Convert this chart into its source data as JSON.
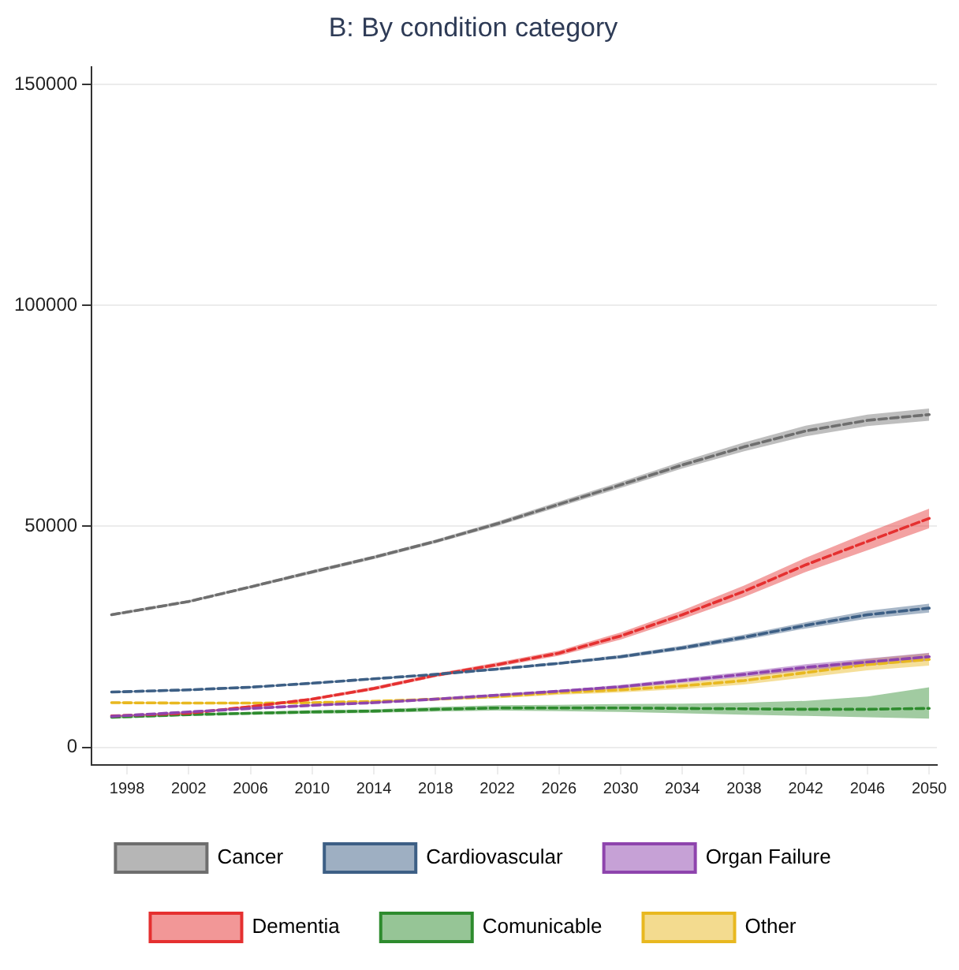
{
  "chart_data": {
    "type": "line",
    "title": "B: By condition category",
    "x": [
      1997,
      2002,
      2006,
      2010,
      2014,
      2018,
      2022,
      2026,
      2030,
      2034,
      2038,
      2042,
      2046,
      2050
    ],
    "series": [
      {
        "name": "Cancer",
        "color": "#6e6e6e",
        "values": [
          30000,
          33000,
          36300,
          39700,
          43000,
          46600,
          50600,
          55000,
          59400,
          63900,
          68000,
          71600,
          74000,
          75300
        ],
        "lower": [
          29700,
          32700,
          36000,
          39300,
          42600,
          46200,
          50100,
          54400,
          58700,
          63100,
          67000,
          70400,
          72700,
          73900
        ],
        "upper": [
          30300,
          33300,
          36600,
          40100,
          43400,
          47000,
          51100,
          55600,
          60100,
          64700,
          69000,
          72800,
          75300,
          76700
        ]
      },
      {
        "name": "Cardiovascular",
        "color": "#3d5f85",
        "values": [
          12500,
          13000,
          13600,
          14500,
          15500,
          16500,
          17700,
          19000,
          20500,
          22500,
          24900,
          27600,
          30000,
          31500
        ],
        "lower": [
          12300,
          12800,
          13400,
          14300,
          15300,
          16300,
          17400,
          18700,
          20100,
          22000,
          24300,
          26900,
          29100,
          30500
        ],
        "upper": [
          12700,
          13200,
          13800,
          14700,
          15700,
          16700,
          18000,
          19300,
          20900,
          23000,
          25500,
          28300,
          30900,
          32500
        ]
      },
      {
        "name": "Organ Failure",
        "color": "#8e44ad",
        "values": [
          7000,
          8000,
          8800,
          9500,
          10100,
          10900,
          11800,
          12700,
          13700,
          15100,
          16500,
          18100,
          19300,
          20500
        ],
        "lower": [
          6800,
          7800,
          8600,
          9300,
          9900,
          10600,
          11500,
          12400,
          13300,
          14600,
          15900,
          17400,
          18500,
          19600
        ],
        "upper": [
          7200,
          8200,
          9000,
          9700,
          10300,
          11200,
          12100,
          13000,
          14100,
          15600,
          17100,
          18800,
          20100,
          21400
        ]
      },
      {
        "name": "Dementia",
        "color": "#e53030",
        "values": [
          7100,
          7700,
          9200,
          10900,
          13300,
          16300,
          18700,
          21300,
          25200,
          30000,
          35300,
          41300,
          46600,
          51800
        ],
        "lower": [
          6900,
          7500,
          8900,
          10600,
          12900,
          15900,
          18200,
          20700,
          24400,
          29000,
          34000,
          39700,
          44600,
          49600
        ],
        "upper": [
          7300,
          7900,
          9500,
          11200,
          13700,
          16700,
          19200,
          21900,
          26000,
          31000,
          36600,
          42900,
          48600,
          54000
        ]
      },
      {
        "name": "Comunicable",
        "color": "#2e8b2e",
        "values": [
          6800,
          7400,
          7700,
          8000,
          8200,
          8600,
          8900,
          8900,
          8900,
          8800,
          8700,
          8600,
          8600,
          8800
        ],
        "lower": [
          6500,
          7100,
          7400,
          7600,
          7800,
          8100,
          8300,
          8200,
          8000,
          7700,
          7400,
          7100,
          6800,
          6500
        ],
        "upper": [
          7100,
          7700,
          8000,
          8400,
          8600,
          9100,
          9500,
          9600,
          9800,
          9900,
          10100,
          10500,
          11500,
          13600
        ]
      },
      {
        "name": "Other",
        "color": "#e8b820",
        "values": [
          10100,
          10000,
          10000,
          10100,
          10400,
          10900,
          11500,
          12400,
          13000,
          13900,
          15100,
          16900,
          18700,
          19900
        ],
        "lower": [
          9900,
          9800,
          9800,
          9900,
          10200,
          10600,
          11100,
          11900,
          12400,
          13200,
          14200,
          15800,
          17400,
          18500
        ],
        "upper": [
          10300,
          10200,
          10200,
          10300,
          10600,
          11200,
          11900,
          12900,
          13600,
          14600,
          16000,
          18000,
          20000,
          21300
        ]
      }
    ],
    "xlim": [
      1995.7,
      2050.5
    ],
    "xticks": [
      1998,
      2002,
      2006,
      2010,
      2014,
      2018,
      2022,
      2026,
      2030,
      2034,
      2038,
      2042,
      2046,
      2050
    ],
    "ylim": [
      -4000,
      154000
    ],
    "yticks": [
      0,
      50000,
      100000,
      150000
    ],
    "grid": "y",
    "legend": "bottom",
    "marker": "none",
    "line_style": "dashed"
  }
}
